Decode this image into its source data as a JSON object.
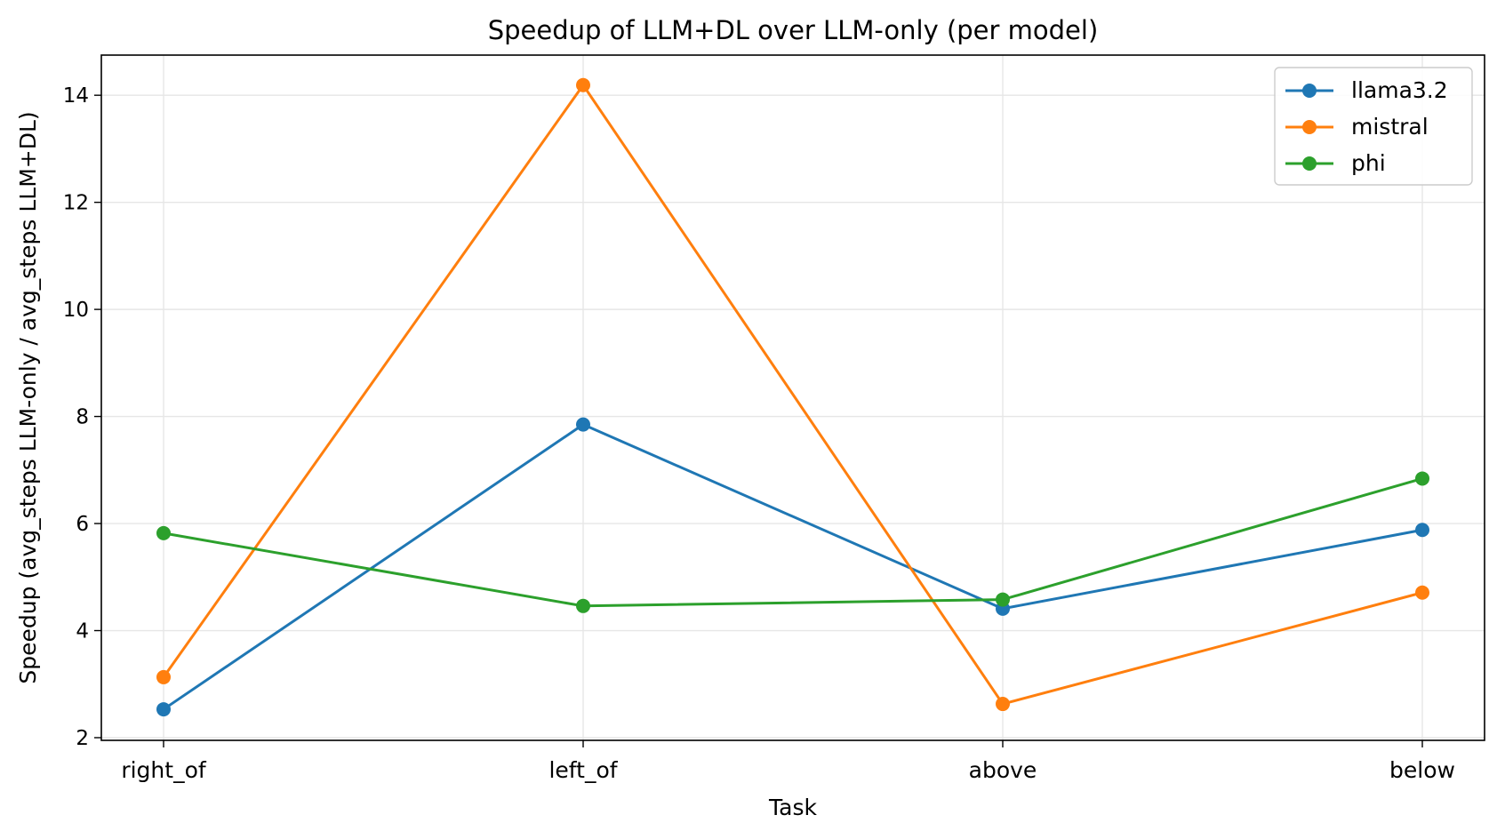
{
  "chart_data": {
    "type": "line",
    "title": "Speedup of LLM+DL over LLM-only (per model)",
    "xlabel": "Task",
    "ylabel": "Speedup (avg_steps LLM-only / avg_steps LLM+DL)",
    "categories": [
      "right_of",
      "left_of",
      "above",
      "below"
    ],
    "ylim": [
      1.95,
      14.75
    ],
    "yticks": [
      2,
      4,
      6,
      8,
      10,
      12,
      14
    ],
    "grid": true,
    "legend_position": "top-right",
    "series": [
      {
        "name": "llama3.2",
        "color": "#1f77b4",
        "values": [
          2.53,
          7.85,
          4.41,
          5.88
        ]
      },
      {
        "name": "mistral",
        "color": "#ff7f0e",
        "values": [
          3.13,
          14.19,
          2.63,
          4.71
        ]
      },
      {
        "name": "phi",
        "color": "#2ca02c",
        "values": [
          5.82,
          4.46,
          4.58,
          6.84
        ]
      }
    ]
  }
}
